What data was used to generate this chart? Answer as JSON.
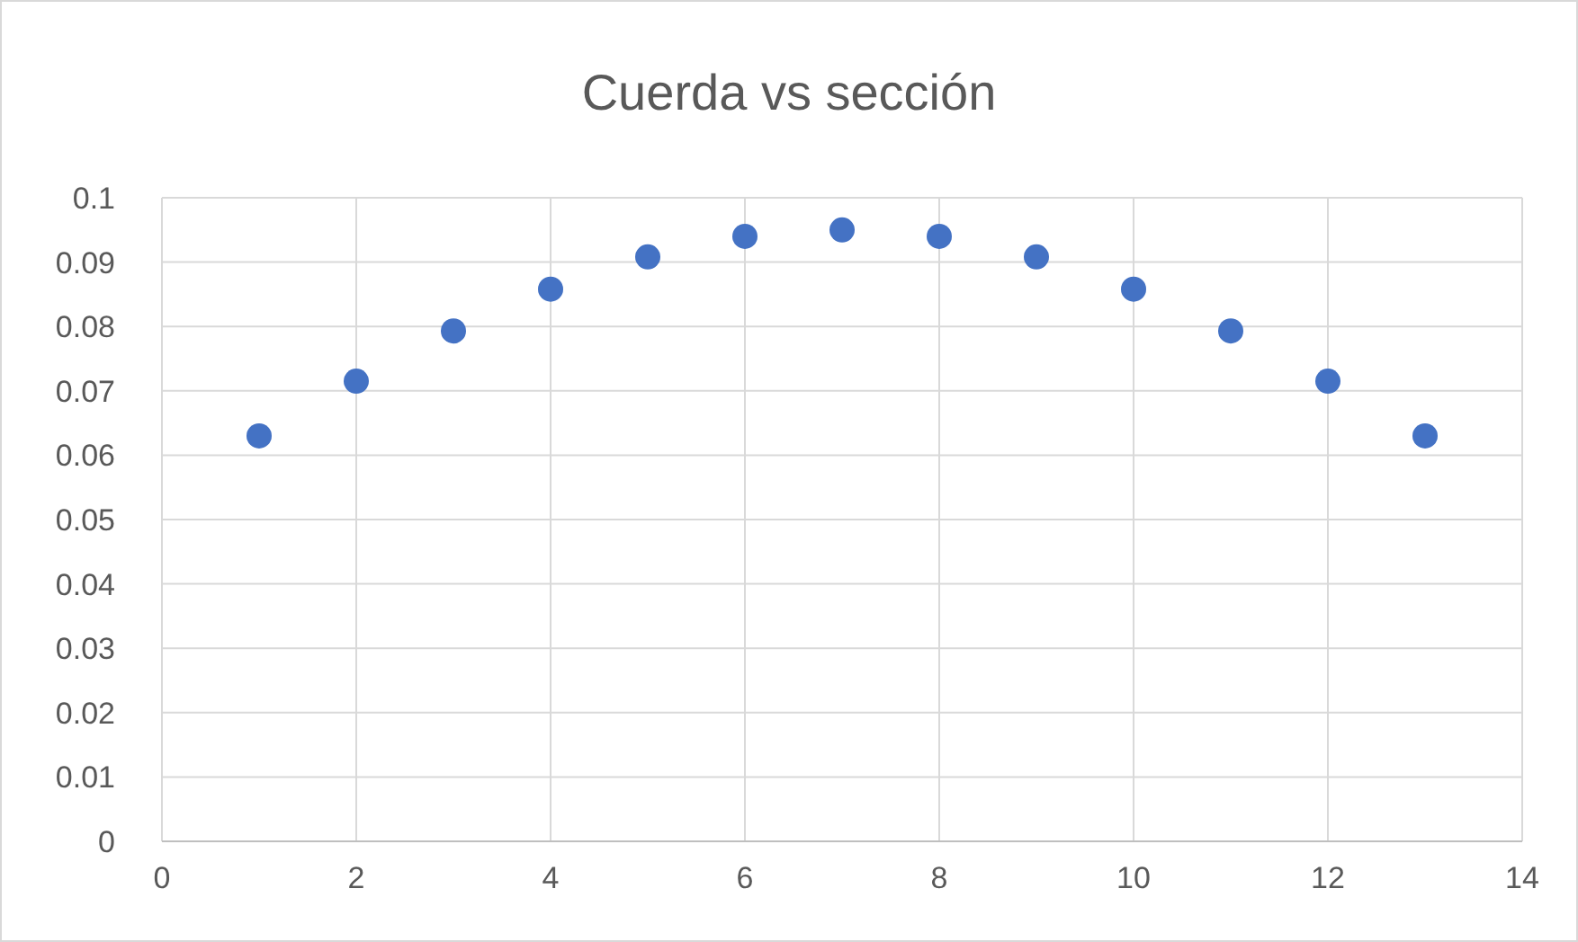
{
  "chart_data": {
    "type": "scatter",
    "title": "Cuerda vs sección",
    "x": [
      1,
      2,
      3,
      4,
      5,
      6,
      7,
      8,
      9,
      10,
      11,
      12,
      13
    ],
    "series": [
      {
        "color": "#4472c4",
        "values": [
          0.063,
          0.0715,
          0.0793,
          0.0858,
          0.0908,
          0.094,
          0.095,
          0.094,
          0.0908,
          0.0858,
          0.0793,
          0.0715,
          0.063
        ]
      }
    ],
    "xlim": [
      0,
      14
    ],
    "xticks": [
      0,
      2,
      4,
      6,
      8,
      10,
      12,
      14
    ],
    "ylim": [
      0,
      0.1
    ],
    "yticks": [
      0,
      0.01,
      0.02,
      0.03,
      0.04,
      0.05,
      0.06,
      0.07,
      0.08,
      0.09,
      0.1
    ],
    "grid": true,
    "marker": "circle"
  }
}
